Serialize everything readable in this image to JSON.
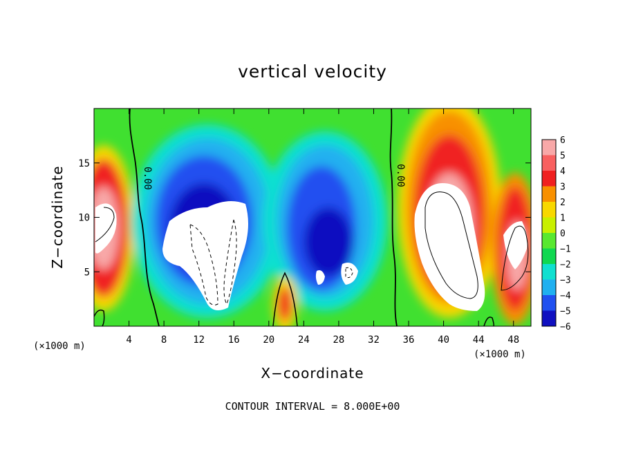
{
  "chart_data": {
    "type": "heatmap",
    "title": "vertical velocity",
    "xlabel": "X−coordinate",
    "ylabel": "Z−coordinate",
    "x_unit": "(×1000 m)",
    "xlim": [
      0,
      50
    ],
    "ylim": [
      0,
      20
    ],
    "x_ticks": [
      4,
      8,
      12,
      16,
      20,
      24,
      28,
      32,
      36,
      40,
      44,
      48
    ],
    "y_ticks": [
      5,
      10,
      15
    ],
    "colorbar": {
      "levels": [
        6,
        5,
        4,
        3,
        2,
        1,
        0,
        -1,
        -2,
        -3,
        -4,
        -5,
        -6
      ],
      "colors": [
        "#f8a8a8",
        "#f86060",
        "#f02020",
        "#f89000",
        "#f8d800",
        "#c8f000",
        "#58e830",
        "#10d850",
        "#10e0d0",
        "#20b0f0",
        "#2050f0",
        "#1010c0",
        "#7010a8"
      ]
    },
    "contour_label": "0.00",
    "contour_interval_text": "CONTOUR INTERVAL = 8.000E+00",
    "features": [
      {
        "type": "updraft",
        "x_center": 2,
        "z_center": 9,
        "max": 6
      },
      {
        "type": "downdraft",
        "x_center": 14,
        "z_center": 7,
        "min": -6
      },
      {
        "type": "downdraft",
        "x_center": 28,
        "z_center": 6,
        "min": -6
      },
      {
        "type": "updraft",
        "x_center": 41.5,
        "z_center": 8,
        "max": 6
      },
      {
        "type": "updraft",
        "x_center": 48,
        "z_center": 6,
        "max": 6
      },
      {
        "type": "updraft",
        "x_center": 22,
        "z_center": 2,
        "max": 6
      }
    ]
  }
}
